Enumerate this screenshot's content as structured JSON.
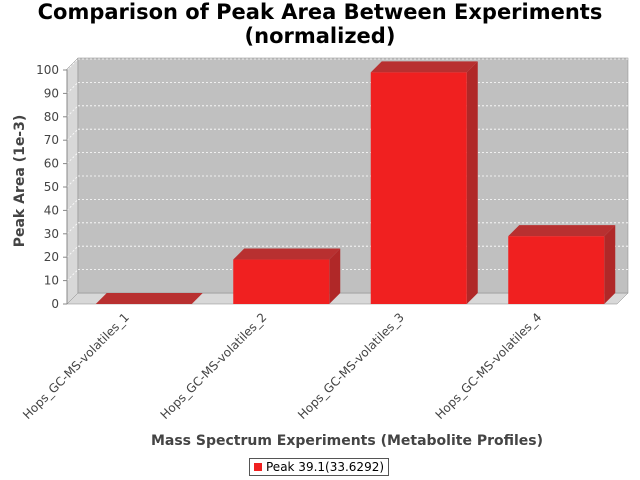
{
  "chart_data": {
    "type": "bar",
    "title": [
      "Comparison of Peak Area Between Experiments",
      "(normalized)"
    ],
    "xlabel": "Mass Spectrum Experiments (Metabolite Profiles)",
    "ylabel": "Peak Area (1e-3)",
    "categories": [
      "Hops_GC-MS-volatiles_1",
      "Hops_GC-MS-volatiles_2",
      "Hops_GC-MS-volatiles_3",
      "Hops_GC-MS-volatiles_4"
    ],
    "series": [
      {
        "name": "Peak 39.1(33.6292)",
        "values": [
          0,
          19,
          99,
          29
        ],
        "color": "#f02020"
      }
    ],
    "ylim": [
      0,
      100
    ],
    "yticks": [
      0,
      10,
      20,
      30,
      40,
      50,
      60,
      70,
      80,
      90,
      100
    ],
    "grid": true,
    "legend_position": "bottom",
    "plot_background": "#c0c0c0",
    "style": "3d"
  }
}
